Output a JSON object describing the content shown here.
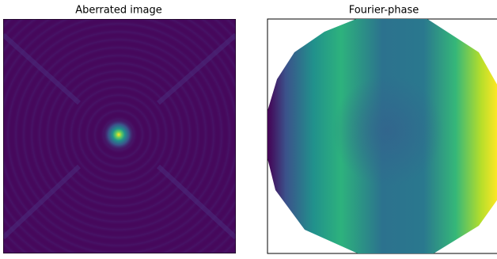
{
  "chart_data": [
    {
      "type": "image",
      "title": "Aberrated image"
    },
    {
      "type": "phase",
      "title": "Fourier-phase"
    }
  ]
}
